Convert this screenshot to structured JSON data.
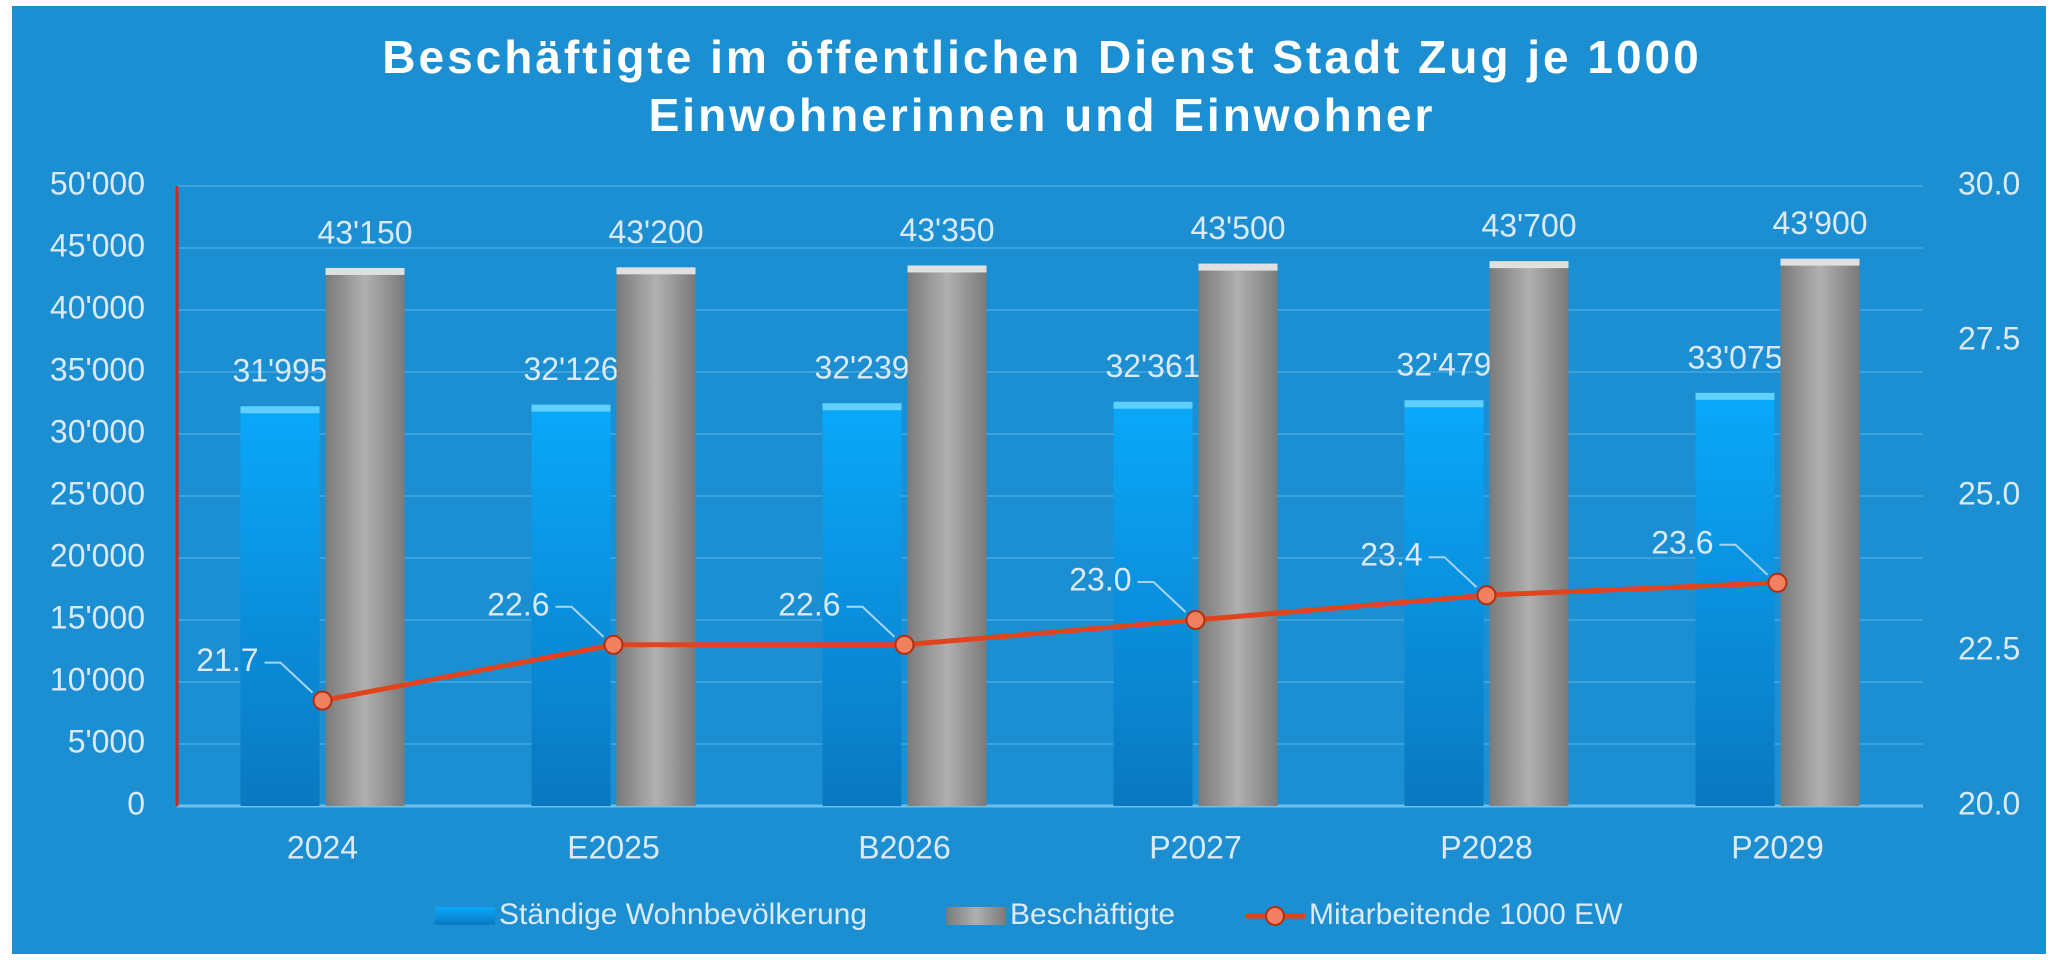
{
  "chart_data": {
    "type": "bar",
    "title": "Beschäftigte im öffentlichen Dienst Stadt Zug je 1000 Einwohnerinnen und Einwohner",
    "categories": [
      "2024",
      "E2025",
      "B2026",
      "P2027",
      "P2028",
      "P2029"
    ],
    "series": [
      {
        "name": "Ständige Wohnbevölkerung",
        "color": "#0aa2f2",
        "type": "bar",
        "values": [
          31995,
          32126,
          32239,
          32361,
          32479,
          33075
        ],
        "value_labels": [
          "31'995",
          "32'126",
          "32'239",
          "32'361",
          "32'479",
          "33'075"
        ]
      },
      {
        "name": "Beschäftigte",
        "color": "#9c9c9c",
        "type": "bar",
        "values": [
          43150,
          43200,
          43350,
          43500,
          43700,
          43900
        ],
        "value_labels": [
          "43'150",
          "43'200",
          "43'350",
          "43'500",
          "43'700",
          "43'900"
        ]
      },
      {
        "name": "Mitarbeitende 1000 EW",
        "color": "#e2421c",
        "type": "line",
        "axis": "y2",
        "values": [
          21.7,
          22.6,
          22.6,
          23.0,
          23.4,
          23.6
        ],
        "value_labels": [
          "21.7",
          "22.6",
          "22.6",
          "23.0",
          "23.4",
          "23.6"
        ]
      }
    ],
    "ylim": [
      0,
      50000
    ],
    "yticks": [
      0,
      {
        "value": 5000,
        "label": "5'000"
      },
      {
        "value": 10000,
        "label": "10'000"
      },
      {
        "value": 15000,
        "label": "15'000"
      },
      {
        "value": 20000,
        "label": "20'000"
      },
      {
        "value": 25000,
        "label": "25'000"
      },
      {
        "value": 30000,
        "label": "30'000"
      },
      {
        "value": 35000,
        "label": "35'000"
      },
      {
        "value": 40000,
        "label": "40'000"
      },
      {
        "value": 45000,
        "label": "45'000"
      },
      {
        "value": 50000,
        "label": "50'000"
      }
    ],
    "y2lim": [
      20,
      30
    ],
    "y2ticks": [
      {
        "value": 20,
        "label": "20.0"
      },
      22.5,
      {
        "value": 25,
        "label": "25.0"
      },
      27.5,
      {
        "value": 30,
        "label": "30.0"
      }
    ],
    "grid": true,
    "legend": "bottom"
  }
}
